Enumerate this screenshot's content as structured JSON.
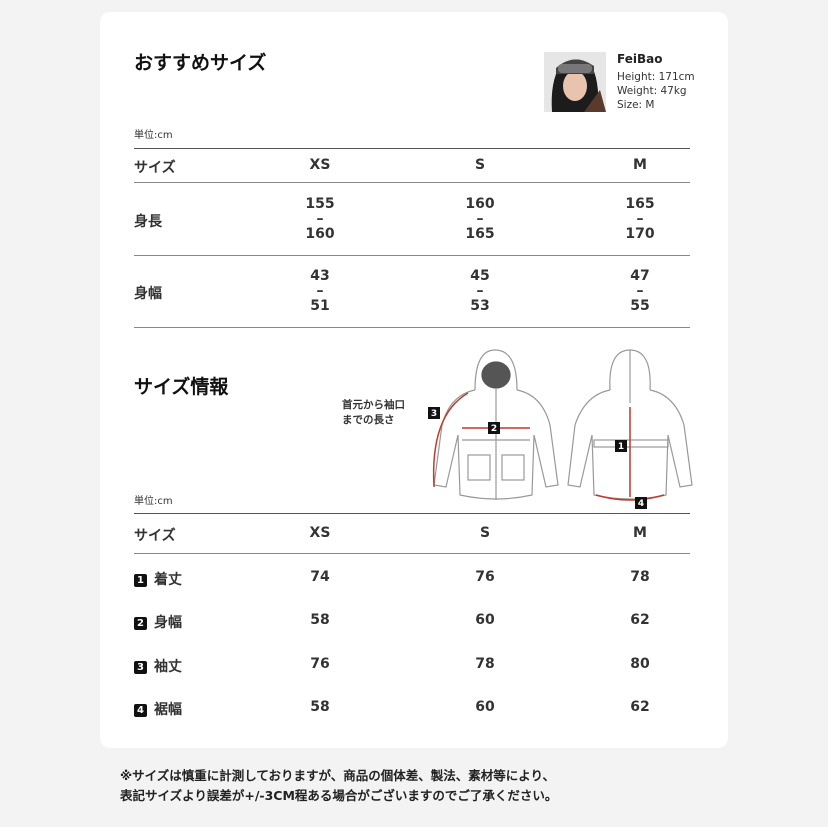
{
  "recommended": {
    "title": "おすすめサイズ",
    "model": {
      "name": "FeiBao",
      "height": "Height: 171cm",
      "weight": "Weight: 47kg",
      "size": "Size: M"
    },
    "unit": "単位:cm",
    "headers": [
      "サイズ",
      "XS",
      "S",
      "M"
    ],
    "rows": [
      {
        "label": "身長",
        "values": [
          [
            "155",
            "–",
            "160"
          ],
          [
            "160",
            "–",
            "165"
          ],
          [
            "165",
            "–",
            "170"
          ]
        ]
      },
      {
        "label": "身幅",
        "values": [
          [
            "43",
            "–",
            "51"
          ],
          [
            "45",
            "–",
            "53"
          ],
          [
            "47",
            "–",
            "55"
          ]
        ]
      }
    ]
  },
  "size_info": {
    "title": "サイズ情報",
    "diagram_note": [
      "首元から袖口",
      "までの長さ"
    ],
    "diagram_markers": [
      "1",
      "2",
      "3",
      "4"
    ],
    "accent_color": "#c0392b",
    "unit": "単位:cm",
    "headers": [
      "サイズ",
      "XS",
      "S",
      "M"
    ],
    "rows": [
      {
        "num": "1",
        "label": "着丈",
        "values": [
          "74",
          "76",
          "78"
        ]
      },
      {
        "num": "2",
        "label": "身幅",
        "values": [
          "58",
          "60",
          "62"
        ]
      },
      {
        "num": "3",
        "label": "袖丈",
        "values": [
          "76",
          "78",
          "80"
        ]
      },
      {
        "num": "4",
        "label": "裾幅",
        "values": [
          "58",
          "60",
          "62"
        ]
      }
    ]
  },
  "note": [
    "※サイズは慎重に計測しておりますが、商品の個体差、製法、素材等により、",
    "表記サイズより誤差が+/-3CM程ある場合がございますのでご了承ください。"
  ]
}
